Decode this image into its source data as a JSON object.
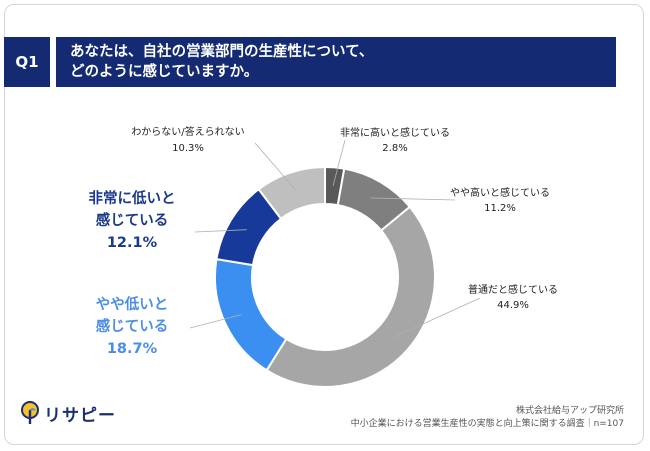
{
  "question": {
    "badge": "Q1",
    "line1": "あなたは、自社の営業部門の生産性について、",
    "line2": "どのように感じていますか。"
  },
  "chart_data": {
    "type": "pie",
    "categories": [
      "非常に高いと感じている",
      "やや高いと感じている",
      "普通だと感じている",
      "やや低いと感じている",
      "非常に低いと感じている",
      "わからない/答えられない"
    ],
    "values": [
      2.8,
      11.2,
      44.9,
      18.7,
      12.1,
      10.3
    ],
    "value_labels": [
      "2.8%",
      "11.2%",
      "44.9%",
      "18.7%",
      "12.1%",
      "10.3%"
    ],
    "colors": [
      "#595959",
      "#7f7f7f",
      "#a6a6a6",
      "#3b8ff0",
      "#17399a",
      "#bfbfbf"
    ],
    "labels": {
      "very_high": {
        "text": "非常に高いと感じている",
        "value": "2.8%"
      },
      "somewhat_high": {
        "text": "やや高いと感じている",
        "value": "11.2%"
      },
      "normal": {
        "text": "普通だと感じている",
        "value": "44.9%"
      },
      "somewhat_low": {
        "line1": "やや低いと",
        "line2": "感じている",
        "value": "18.7%"
      },
      "very_low": {
        "line1": "非常に低いと",
        "line2": "感じている",
        "value": "12.1%"
      },
      "unknown": {
        "text": "わからない/答えられない",
        "value": "10.3%"
      }
    },
    "style": "donut"
  },
  "footer": {
    "company": "株式会社給与アップ研究所",
    "survey": "中小企業における営業生産性の実態と向上策に関する調査｜n=107"
  },
  "logo": {
    "text": "リサピー",
    "icon": "lightbulb-pin-icon"
  }
}
